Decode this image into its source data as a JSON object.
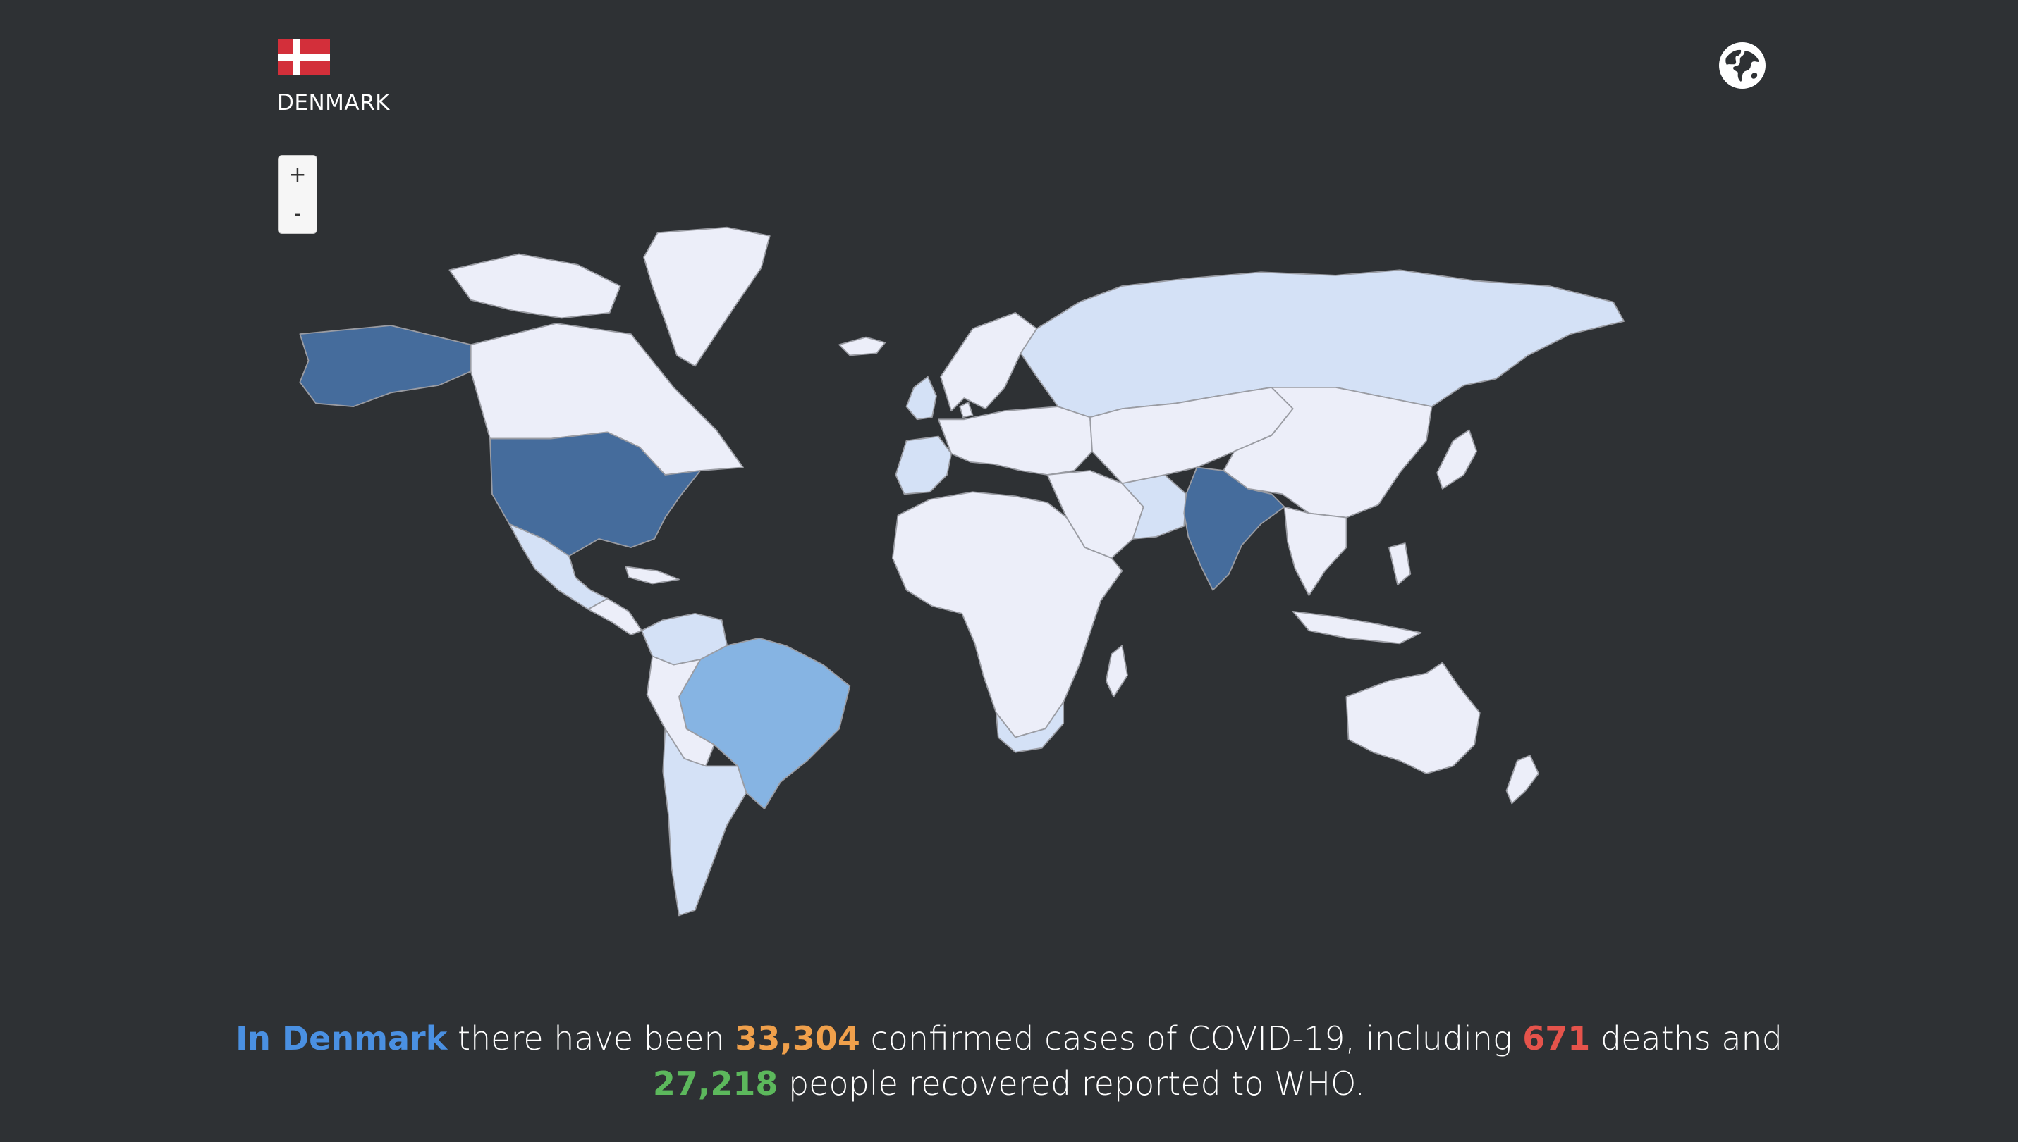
{
  "header": {
    "country_name": "DENMARK",
    "flag": {
      "icon": "denmark-flag-icon",
      "colors": {
        "field": "#d32f3a",
        "cross": "#ffffff"
      }
    },
    "globe_icon": "globe-icon"
  },
  "zoom": {
    "in_label": "+",
    "out_label": "-"
  },
  "map": {
    "colors": {
      "background": "#2e3134",
      "land_default": "#eceef9",
      "land_light": "#d4e1f6",
      "land_medium": "#86b4e3",
      "land_dark": "#456c9c",
      "border": "#9a9ca3"
    },
    "shaded_countries": [
      {
        "name": "United States",
        "shade": "land_dark"
      },
      {
        "name": "India",
        "shade": "land_dark"
      },
      {
        "name": "Brazil",
        "shade": "land_medium"
      },
      {
        "name": "Russia",
        "shade": "land_light"
      },
      {
        "name": "Argentina",
        "shade": "land_light"
      },
      {
        "name": "Colombia",
        "shade": "land_light"
      },
      {
        "name": "Mexico",
        "shade": "land_light"
      },
      {
        "name": "Spain",
        "shade": "land_light"
      },
      {
        "name": "France",
        "shade": "land_light"
      },
      {
        "name": "United Kingdom",
        "shade": "land_light"
      },
      {
        "name": "Iran",
        "shade": "land_light"
      },
      {
        "name": "South Africa",
        "shade": "land_light"
      }
    ]
  },
  "summary": {
    "country": "In Denmark",
    "text1": " there have been ",
    "cases": "33,304",
    "text2": " confirmed cases of COVID-19, including ",
    "deaths": "671",
    "text3": " deaths and ",
    "recovered": "27,218",
    "text4": " people recovered reported to WHO."
  }
}
